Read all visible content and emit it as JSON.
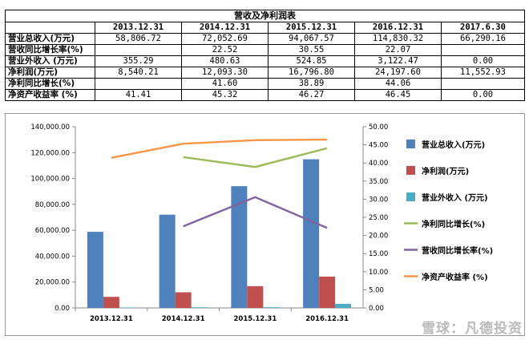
{
  "table": {
    "title": "营收及净利润表",
    "headers": [
      "",
      "2013.12.31",
      "2014.12.31",
      "2015.12.31",
      "2016.12.31",
      "2017.6.30"
    ],
    "rows": [
      {
        "label": "营业总收入(万元)",
        "cells": [
          "58,806.72",
          "72,052.69",
          "94,067.57",
          "114,830.32",
          "66,290.16"
        ]
      },
      {
        "label": "营收同比增长率(%)",
        "cells": [
          "",
          "22.52",
          "30.55",
          "22.07",
          ""
        ]
      },
      {
        "label": "营业外收入 (万元)",
        "cells": [
          "355.29",
          "480.63",
          "524.85",
          "3,122.47",
          "0.00"
        ]
      },
      {
        "label": "净利润(万元)",
        "cells": [
          "8,540.21",
          "12,093.30",
          "16,796.80",
          "24,197.60",
          "11,552.93"
        ]
      },
      {
        "label": "净利同比增长(%)",
        "cells": [
          "",
          "41.60",
          "38.89",
          "44.06",
          ""
        ]
      },
      {
        "label": "净资产收益率 (%)",
        "cells": [
          "41.41",
          "45.32",
          "46.27",
          "46.45",
          "0.00"
        ]
      }
    ]
  },
  "chart_data": {
    "type": "bar",
    "categories": [
      "2013.12.31",
      "2014.12.31",
      "2015.12.31",
      "2016.12.31"
    ],
    "y_left": {
      "range": [
        0,
        140000
      ],
      "ticks": [
        "0.00",
        "20,000.00",
        "40,000.00",
        "60,000.00",
        "80,000.00",
        "100,000.00",
        "120,000.00",
        "140,000.00"
      ]
    },
    "y_right": {
      "range": [
        0,
        50
      ],
      "ticks": [
        "0.00",
        "5.00",
        "10.00",
        "15.00",
        "20.00",
        "25.00",
        "30.00",
        "35.00",
        "40.00",
        "45.00",
        "50.00"
      ]
    },
    "legend_position": "right",
    "grid": false,
    "series": [
      {
        "name": "营业总收入(万元)",
        "kind": "bar",
        "axis": "left",
        "color": "#4f81bd",
        "values": [
          58806.72,
          72052.69,
          94067.57,
          114830.32
        ]
      },
      {
        "name": "净利润(万元)",
        "kind": "bar",
        "axis": "left",
        "color": "#c0504d",
        "values": [
          8540.21,
          12093.3,
          16796.8,
          24197.6
        ]
      },
      {
        "name": "营业外收入 (万元)",
        "kind": "bar",
        "axis": "left",
        "color": "#4bacc6",
        "values": [
          355.29,
          480.63,
          524.85,
          3122.47
        ]
      },
      {
        "name": "净利同比增长(%)",
        "kind": "line",
        "axis": "right",
        "color": "#9bbb59",
        "values": [
          null,
          41.6,
          38.89,
          44.06
        ]
      },
      {
        "name": "营收同比增长率(%)",
        "kind": "line",
        "axis": "right",
        "color": "#8064a2",
        "values": [
          null,
          22.52,
          30.55,
          22.07
        ]
      },
      {
        "name": "净资产收益率 (%)",
        "kind": "line",
        "axis": "right",
        "color": "#f79646",
        "values": [
          41.41,
          45.32,
          46.27,
          46.45
        ]
      }
    ]
  },
  "watermark": "雪球：凡德投资"
}
